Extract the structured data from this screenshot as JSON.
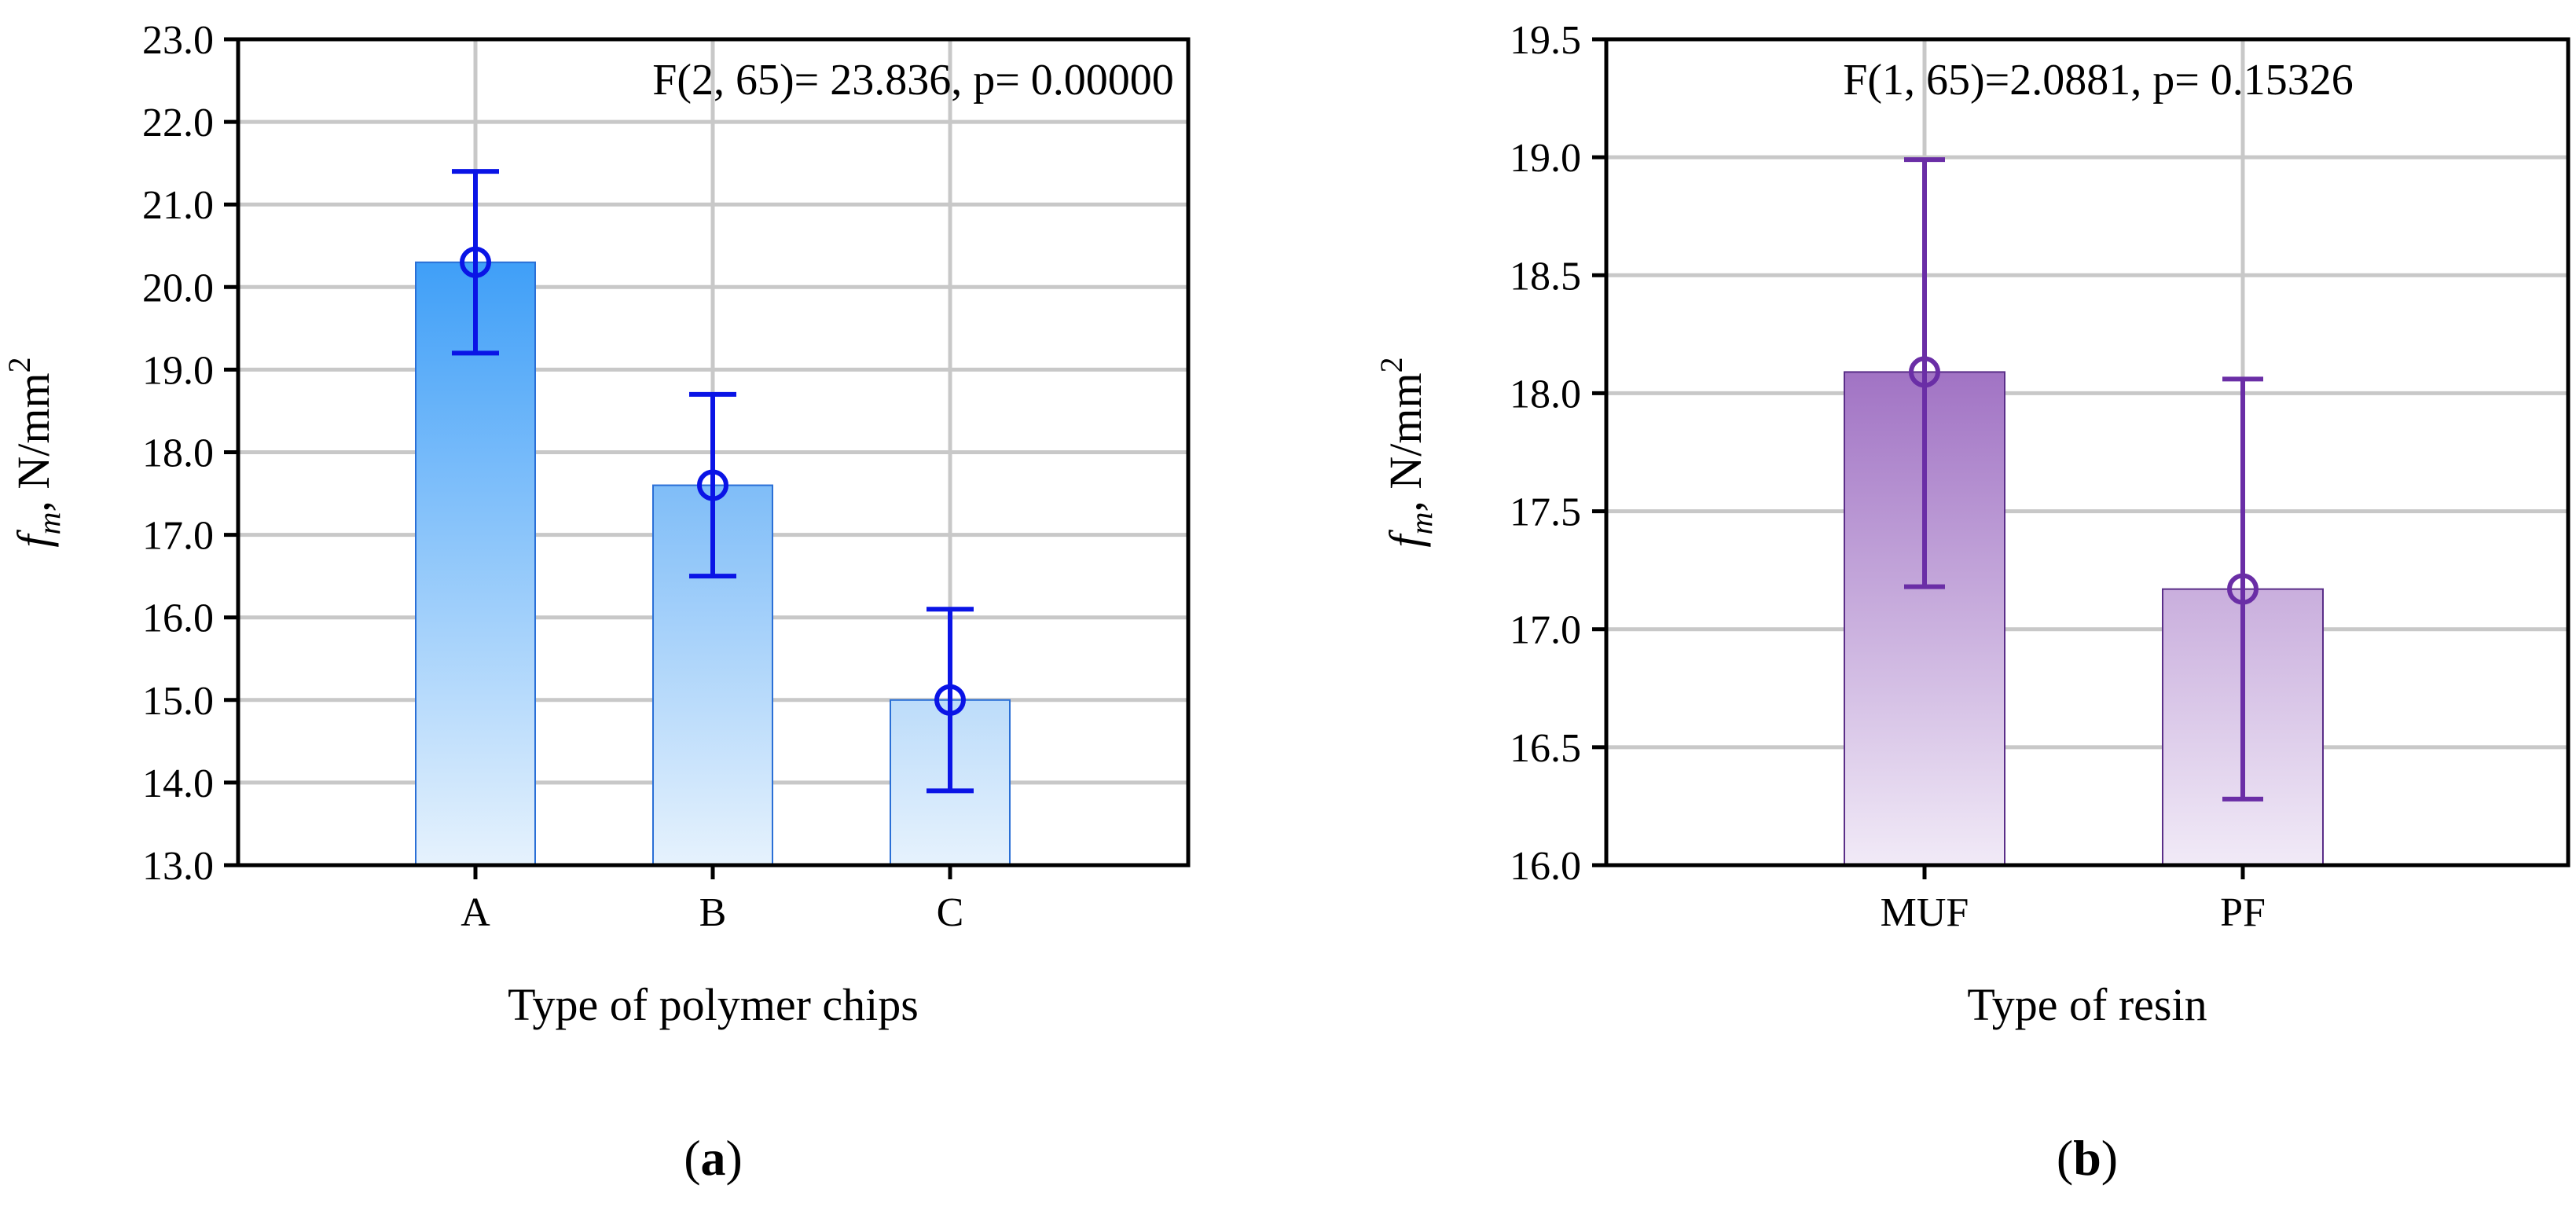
{
  "chart_data": [
    {
      "type": "bar",
      "panel_label": "(a)",
      "annotation": "F(2, 65)= 23.836, p= 0.00000",
      "xlabel": "Type of polymer chips",
      "ylabel_main": "f",
      "ylabel_sub": "m",
      "ylabel_rest": ", N/mm",
      "ylabel_sup": "2",
      "categories": [
        "A",
        "B",
        "C"
      ],
      "values": [
        20.3,
        17.6,
        15.0
      ],
      "error_low": [
        19.2,
        16.5,
        13.9
      ],
      "error_high": [
        21.4,
        18.7,
        16.1
      ],
      "ylim": [
        13.0,
        23.0
      ],
      "yticks": [
        13.0,
        14.0,
        15.0,
        16.0,
        17.0,
        18.0,
        19.0,
        20.0,
        21.0,
        22.0,
        23.0
      ],
      "ytick_labels": [
        "13.0",
        "14.0",
        "15.0",
        "16.0",
        "17.0",
        "18.0",
        "19.0",
        "20.0",
        "21.0",
        "22.0",
        "23.0"
      ],
      "grid": true,
      "colors": {
        "bar_top": [
          "#3f9ff8",
          "#7fbdf8",
          "#bcdcfa"
        ],
        "bar_bottom": "#e6f2fd",
        "bar_edge": "#2a6fd6",
        "error": "#0a14e6"
      }
    },
    {
      "type": "bar",
      "panel_label": "(b)",
      "annotation": "F(1, 65)=2.0881, p= 0.15326",
      "xlabel": "Type of resin",
      "ylabel_main": "f",
      "ylabel_sub": "m",
      "ylabel_rest": ", N/mm",
      "ylabel_sup": "2",
      "categories": [
        "MUF",
        "PF"
      ],
      "values": [
        18.09,
        17.17
      ],
      "error_low": [
        17.18,
        16.28
      ],
      "error_high": [
        18.99,
        18.06
      ],
      "ylim": [
        16.0,
        19.5
      ],
      "yticks": [
        16.0,
        16.5,
        17.0,
        17.5,
        18.0,
        18.5,
        19.0,
        19.5
      ],
      "ytick_labels": [
        "16.0",
        "16.5",
        "17.0",
        "17.5",
        "18.0",
        "18.5",
        "19.0",
        "19.5"
      ],
      "grid": true,
      "colors": {
        "bar_top": [
          "#a173c4",
          "#c9aedd"
        ],
        "bar_bottom": "#f1eaf7",
        "bar_edge": "#5a2e88",
        "error": "#6a2ea6"
      }
    }
  ]
}
